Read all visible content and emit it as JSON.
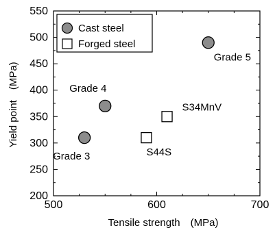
{
  "chart_data": {
    "type": "scatter",
    "xlabel": "Tensile strength (MPa)",
    "ylabel": "Yield point (MPa)",
    "xlim": [
      500,
      700
    ],
    "ylim": [
      200,
      550
    ],
    "xticks": [
      500,
      600,
      700
    ],
    "xtick_labels": [
      "500",
      "600",
      "700"
    ],
    "yticks": [
      200,
      250,
      300,
      350,
      400,
      450,
      500,
      550
    ],
    "ytick_labels": [
      "200",
      "250",
      "300",
      "350",
      "400",
      "450",
      "500",
      "550"
    ],
    "grid": false,
    "legend_position": "top-left",
    "series": [
      {
        "name": "Cast steel",
        "marker": "circle",
        "color": "#8c8c8c",
        "points": [
          {
            "label": "Grade 3",
            "x": 530,
            "y": 310
          },
          {
            "label": "Grade 4",
            "x": 550,
            "y": 370
          },
          {
            "label": "Grade 5",
            "x": 650,
            "y": 490
          }
        ]
      },
      {
        "name": "Forged steel",
        "marker": "square",
        "color": "#ffffff",
        "points": [
          {
            "label": "S34MnV",
            "x": 610,
            "y": 350
          },
          {
            "label": "S44S",
            "x": 590,
            "y": 310
          }
        ]
      }
    ]
  }
}
